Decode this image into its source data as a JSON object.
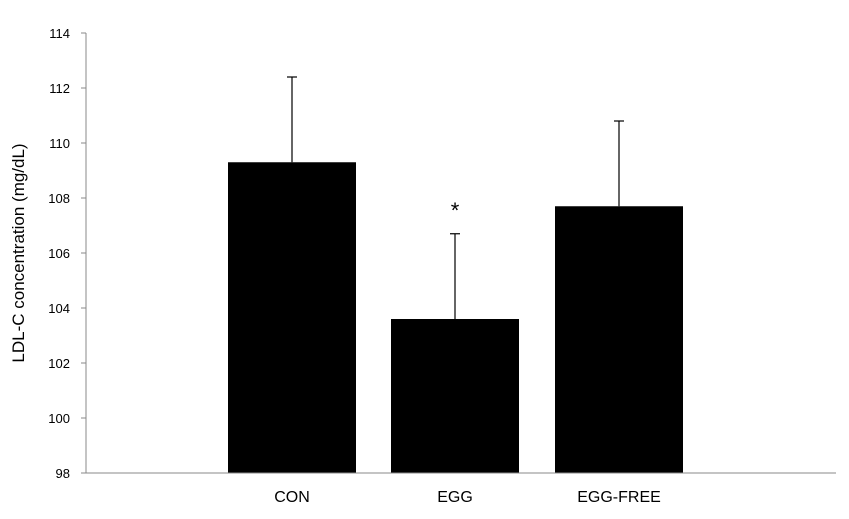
{
  "chart_data": {
    "type": "bar",
    "categories": [
      "CON",
      "EGG",
      "EGG-FREE"
    ],
    "values": [
      109.3,
      103.6,
      107.7
    ],
    "error_upper": [
      3.1,
      3.1,
      3.1
    ],
    "annotations": [
      {
        "category": "EGG",
        "text": "*"
      }
    ],
    "xlabel": "",
    "ylabel": "LDL-C concentration (mg/dL)",
    "ylim": [
      98,
      114
    ],
    "yticks": [
      98,
      100,
      102,
      104,
      106,
      108,
      110,
      112,
      114
    ],
    "grid": false,
    "bar_color": "#000000",
    "axis_color": "#888888"
  }
}
